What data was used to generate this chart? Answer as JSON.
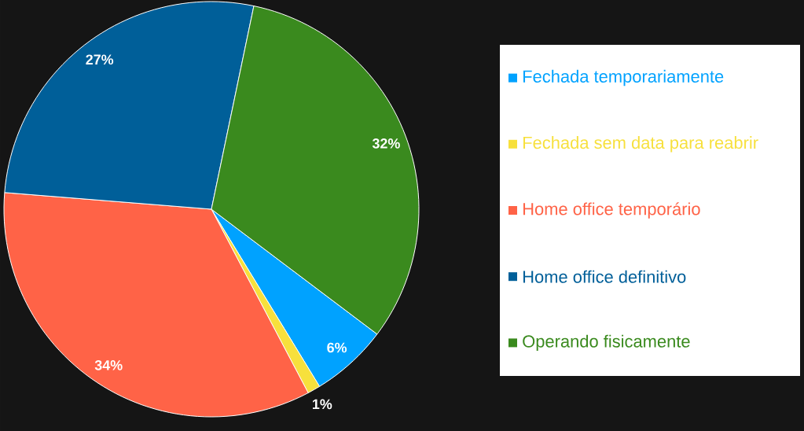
{
  "chart_data": {
    "type": "pie",
    "categories": [
      "Fechada temporariamente",
      "Fechada sem data para reabrir",
      "Home office temporário",
      "Home office definitivo",
      "Operando fisicamente"
    ],
    "values": [
      6,
      1,
      34,
      27,
      32
    ],
    "value_labels": [
      "6%",
      "1%",
      "34%",
      "27%",
      "32%"
    ],
    "colors": [
      "#00a2ff",
      "#f7e03c",
      "#ff6347",
      "#005f99",
      "#3a8a1e"
    ],
    "legend": "right"
  }
}
